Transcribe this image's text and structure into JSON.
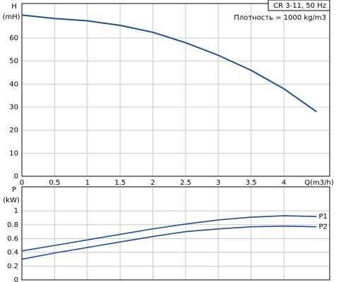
{
  "chart_data": [
    {
      "type": "line",
      "annotations": [
        "CR 3-11, 50 Hz",
        "Плотность = 1000 kg/m3"
      ],
      "y_label": [
        "H",
        "(mH)"
      ],
      "x_label": "Q(m3/h)",
      "x": [
        0,
        0.5,
        1,
        1.5,
        2,
        2.5,
        3,
        3.5,
        4,
        4.5
      ],
      "values": [
        70,
        68.5,
        67.5,
        65.5,
        62.5,
        58,
        52.5,
        46,
        38,
        28
      ],
      "color": "#1f4e8c",
      "xlim": [
        0,
        4.7
      ],
      "xticks": [
        0,
        0.5,
        1,
        1.5,
        2,
        2.5,
        3,
        3.5,
        4
      ],
      "ylim": [
        0,
        75
      ],
      "yticks": [
        0,
        10,
        20,
        30,
        40,
        50,
        60
      ],
      "grid": true
    },
    {
      "type": "line",
      "y_label": [
        "P",
        "(kW)"
      ],
      "x": [
        0,
        0.5,
        1,
        1.5,
        2,
        2.5,
        3,
        3.5,
        4,
        4.5
      ],
      "series": [
        {
          "name": "P1",
          "color": "#1f4e8c",
          "values": [
            0.42,
            0.5,
            0.58,
            0.66,
            0.74,
            0.81,
            0.87,
            0.91,
            0.93,
            0.92
          ]
        },
        {
          "name": "P2",
          "color": "#1f4e8c",
          "values": [
            0.3,
            0.39,
            0.47,
            0.55,
            0.63,
            0.7,
            0.74,
            0.77,
            0.78,
            0.77
          ]
        }
      ],
      "xlim": [
        0,
        4.7
      ],
      "xticks": [
        0,
        0.5,
        1,
        1.5,
        2,
        2.5,
        3,
        3.5,
        4
      ],
      "ylim": [
        0,
        1.35
      ],
      "yticks": [
        0,
        0.2,
        0.4,
        0.6,
        0.8,
        1
      ],
      "grid": true
    }
  ]
}
